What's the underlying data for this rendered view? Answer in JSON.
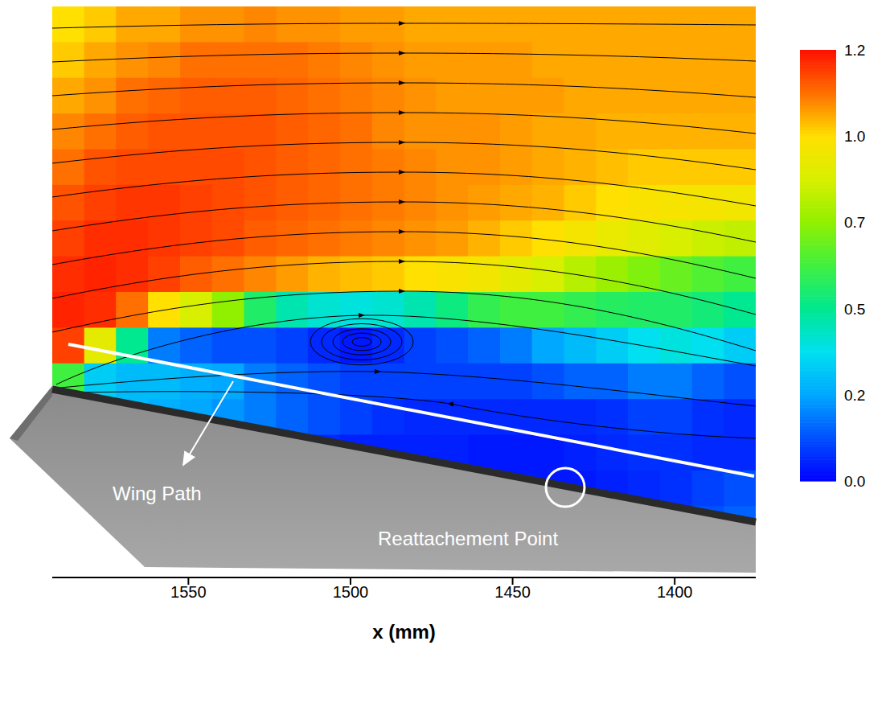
{
  "chart_data": {
    "type": "heatmap",
    "x_label": "x (mm)",
    "xlim": [
      1592,
      1375
    ],
    "xticks": [
      1550,
      1500,
      1450,
      1400
    ],
    "tick_labels": "x",
    "x": [
      1587.1,
      1577.2,
      1567.4,
      1557.5,
      1547.6,
      1537.8,
      1527.9,
      1518.0,
      1508.2,
      1498.3,
      1488.4,
      1478.5,
      1468.7,
      1458.8,
      1448.9,
      1439.1,
      1429.2,
      1419.3,
      1409.5,
      1399.6,
      1389.7,
      1379.9
    ],
    "cells": [
      [
        1.0,
        1.02,
        1.05,
        1.05,
        1.07,
        1.07,
        1.08,
        1.07,
        1.07,
        1.06,
        1.06,
        1.05,
        1.05,
        1.05,
        1.05,
        1.05,
        1.05,
        1.05,
        1.05,
        1.05,
        1.05,
        1.05
      ],
      [
        1.02,
        1.05,
        1.07,
        1.08,
        1.1,
        1.1,
        1.1,
        1.1,
        1.09,
        1.08,
        1.07,
        1.06,
        1.06,
        1.06,
        1.06,
        1.05,
        1.05,
        1.05,
        1.05,
        1.05,
        1.05,
        1.05
      ],
      [
        1.05,
        1.07,
        1.1,
        1.11,
        1.12,
        1.12,
        1.12,
        1.11,
        1.1,
        1.09,
        1.08,
        1.07,
        1.06,
        1.06,
        1.06,
        1.06,
        1.05,
        1.05,
        1.05,
        1.05,
        1.05,
        1.05
      ],
      [
        1.08,
        1.1,
        1.12,
        1.13,
        1.13,
        1.13,
        1.13,
        1.12,
        1.11,
        1.1,
        1.08,
        1.07,
        1.07,
        1.07,
        1.06,
        1.05,
        1.05,
        1.04,
        1.04,
        1.04,
        1.04,
        1.04
      ],
      [
        1.1,
        1.13,
        1.14,
        1.14,
        1.14,
        1.14,
        1.13,
        1.12,
        1.11,
        1.1,
        1.09,
        1.08,
        1.07,
        1.07,
        1.06,
        1.05,
        1.04,
        1.03,
        1.02,
        1.02,
        1.02,
        1.02
      ],
      [
        1.13,
        1.15,
        1.16,
        1.16,
        1.15,
        1.14,
        1.13,
        1.12,
        1.11,
        1.1,
        1.09,
        1.08,
        1.07,
        1.06,
        1.05,
        1.04,
        1.02,
        1.0,
        0.98,
        0.97,
        0.96,
        0.95
      ],
      [
        1.15,
        1.17,
        1.17,
        1.16,
        1.15,
        1.14,
        1.12,
        1.11,
        1.1,
        1.09,
        1.08,
        1.07,
        1.06,
        1.04,
        1.02,
        1.0,
        0.96,
        0.92,
        0.88,
        0.85,
        0.82,
        0.8
      ],
      [
        1.17,
        1.18,
        1.17,
        1.15,
        1.12,
        1.1,
        1.08,
        1.06,
        1.04,
        1.03,
        1.02,
        1.0,
        0.98,
        0.95,
        0.9,
        0.85,
        0.78,
        0.72,
        0.68,
        0.65,
        0.62,
        0.6
      ],
      [
        1.18,
        1.17,
        1.1,
        1.0,
        0.85,
        0.7,
        0.55,
        0.45,
        0.4,
        0.38,
        0.4,
        0.45,
        0.52,
        0.58,
        0.6,
        0.6,
        0.58,
        0.56,
        0.55,
        0.55,
        0.53,
        0.5
      ],
      [
        1.15,
        0.9,
        0.5,
        0.15,
        0.12,
        0.1,
        0.1,
        0.08,
        0.05,
        0.03,
        0.05,
        0.08,
        0.1,
        0.12,
        0.15,
        0.2,
        0.25,
        0.3,
        0.35,
        0.38,
        0.35,
        0.3
      ],
      [
        0.6,
        0.3,
        0.25,
        0.25,
        0.22,
        0.2,
        0.15,
        0.12,
        0.1,
        0.08,
        0.08,
        0.08,
        0.08,
        0.08,
        0.08,
        0.1,
        0.12,
        0.12,
        0.15,
        0.15,
        0.12,
        0.1
      ],
      [
        null,
        null,
        0.25,
        0.22,
        0.2,
        0.18,
        0.15,
        0.12,
        0.1,
        0.08,
        0.06,
        0.05,
        0.05,
        0.05,
        0.05,
        0.05,
        0.05,
        0.06,
        0.08,
        0.08,
        0.06,
        0.05
      ],
      [
        null,
        null,
        null,
        null,
        null,
        null,
        null,
        null,
        0.05,
        0.04,
        0.04,
        0.04,
        0.04,
        0.03,
        0.03,
        0.03,
        0.04,
        0.05,
        0.06,
        0.06,
        0.05,
        0.05
      ],
      [
        null,
        null,
        null,
        null,
        null,
        null,
        null,
        null,
        null,
        null,
        null,
        null,
        null,
        null,
        0.03,
        0.03,
        0.03,
        0.04,
        0.05,
        0.06,
        0.08,
        0.1
      ],
      [
        null,
        null,
        null,
        null,
        null,
        null,
        null,
        null,
        null,
        null,
        null,
        null,
        null,
        null,
        null,
        null,
        null,
        null,
        null,
        null,
        0.1,
        0.12
      ],
      [
        null,
        null,
        null,
        null,
        null,
        null,
        null,
        null,
        null,
        null,
        null,
        null,
        null,
        null,
        null,
        null,
        null,
        null,
        null,
        null,
        null,
        null
      ]
    ],
    "colorbar": {
      "range": [
        0,
        1.2
      ],
      "ticks": [
        {
          "value": 0,
          "label": "0.0"
        },
        0.2,
        0.5,
        0.7,
        {
          "value": 1,
          "label": "1.0"
        },
        1.2
      ]
    },
    "annotations": [
      "Wing Path",
      "Reattachement Point"
    ]
  }
}
